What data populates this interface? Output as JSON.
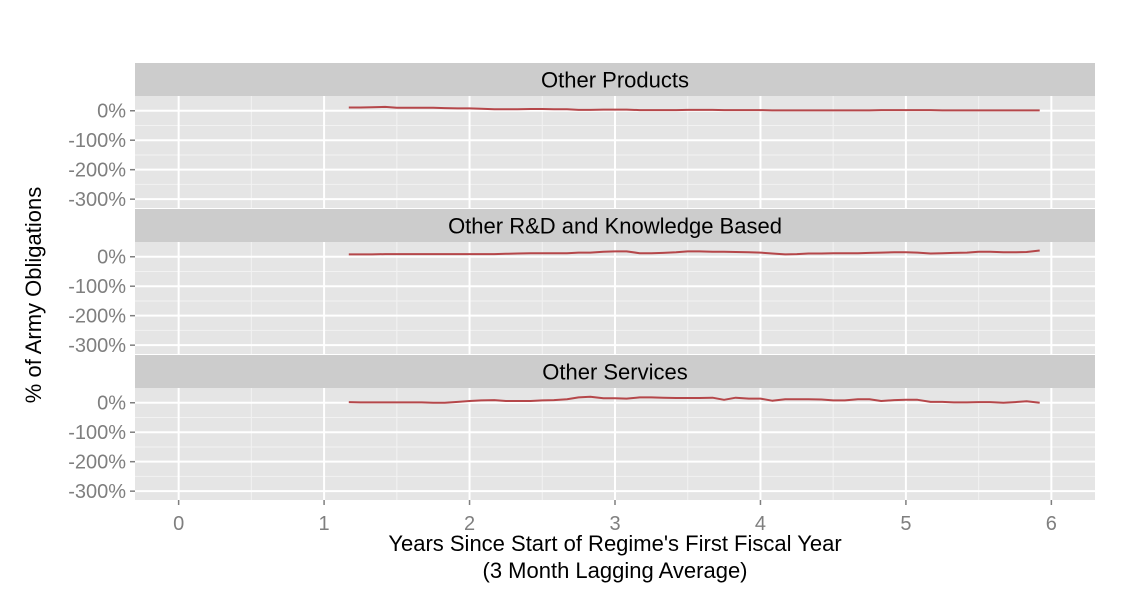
{
  "chart_data": {
    "type": "line",
    "facets": [
      "Other Products",
      "Other R&D and Knowledge Based",
      "Other Services"
    ],
    "xlabel": "Years Since Start of Regime's First Fiscal Year",
    "xlabel_note": "(3 Month Lagging Average)",
    "ylabel": "% of Army Obligations",
    "xlim": [
      -0.3,
      6.3
    ],
    "ylim": [
      -330,
      50
    ],
    "x_ticks": [
      0,
      1,
      2,
      3,
      4,
      5,
      6
    ],
    "x_tick_labels": [
      "0",
      "1",
      "2",
      "3",
      "4",
      "5",
      "6"
    ],
    "y_ticks": [
      0,
      -100,
      -200,
      -300
    ],
    "y_tick_labels": [
      "0%",
      "-100%",
      "-200%",
      "-300%"
    ],
    "grid": true,
    "line_color": "#b5474a",
    "panel_background": "#e5e5e5",
    "strip_background": "#cccccc",
    "series": [
      {
        "facet": "Other Products",
        "x": [
          1.17,
          1.25,
          1.33,
          1.42,
          1.5,
          1.58,
          1.67,
          1.75,
          1.83,
          1.92,
          2.0,
          2.08,
          2.17,
          2.25,
          2.33,
          2.42,
          2.5,
          2.58,
          2.67,
          2.75,
          2.83,
          2.92,
          3.0,
          3.08,
          3.17,
          3.25,
          3.33,
          3.42,
          3.5,
          3.58,
          3.67,
          3.75,
          3.83,
          3.92,
          4.0,
          4.08,
          4.17,
          4.25,
          4.33,
          4.42,
          4.5,
          4.58,
          4.67,
          4.75,
          4.83,
          4.92,
          5.0,
          5.08,
          5.17,
          5.25,
          5.33,
          5.42,
          5.5,
          5.58,
          5.67,
          5.75,
          5.83,
          5.92
        ],
        "values": [
          11,
          11,
          12,
          13,
          10,
          10,
          10,
          10,
          9,
          8,
          8,
          7,
          5,
          5,
          5,
          6,
          6,
          5,
          5,
          3,
          3,
          4,
          4,
          4,
          2,
          2,
          2,
          2,
          3,
          3,
          3,
          2,
          2,
          2,
          2,
          1,
          1,
          1,
          1,
          1,
          1,
          1,
          1,
          1,
          2,
          2,
          2,
          2,
          2,
          1,
          1,
          1,
          1,
          1,
          1,
          1,
          1,
          1
        ]
      },
      {
        "facet": "Other R&D and Knowledge Based",
        "x": [
          1.17,
          1.25,
          1.33,
          1.42,
          1.5,
          1.58,
          1.67,
          1.75,
          1.83,
          1.92,
          2.0,
          2.08,
          2.17,
          2.25,
          2.33,
          2.42,
          2.5,
          2.58,
          2.67,
          2.75,
          2.83,
          2.92,
          3.0,
          3.08,
          3.17,
          3.25,
          3.33,
          3.42,
          3.5,
          3.58,
          3.67,
          3.75,
          3.83,
          3.92,
          4.0,
          4.08,
          4.17,
          4.25,
          4.33,
          4.42,
          4.5,
          4.58,
          4.67,
          4.75,
          4.83,
          4.92,
          5.0,
          5.08,
          5.17,
          5.25,
          5.33,
          5.42,
          5.5,
          5.58,
          5.67,
          5.75,
          5.83,
          5.92
        ],
        "values": [
          8,
          8,
          8,
          9,
          9,
          9,
          9,
          9,
          9,
          9,
          9,
          9,
          9,
          10,
          11,
          12,
          12,
          12,
          12,
          14,
          14,
          17,
          18,
          18,
          12,
          12,
          13,
          15,
          18,
          18,
          17,
          17,
          16,
          15,
          14,
          11,
          8,
          9,
          11,
          11,
          12,
          12,
          12,
          13,
          14,
          15,
          15,
          14,
          11,
          12,
          13,
          14,
          17,
          17,
          15,
          15,
          16,
          21
        ]
      },
      {
        "facet": "Other Services",
        "x": [
          1.17,
          1.25,
          1.33,
          1.42,
          1.5,
          1.58,
          1.67,
          1.75,
          1.83,
          1.92,
          2.0,
          2.08,
          2.17,
          2.25,
          2.33,
          2.42,
          2.5,
          2.58,
          2.67,
          2.75,
          2.83,
          2.92,
          3.0,
          3.08,
          3.17,
          3.25,
          3.33,
          3.42,
          3.5,
          3.58,
          3.67,
          3.75,
          3.83,
          3.92,
          4.0,
          4.08,
          4.17,
          4.25,
          4.33,
          4.42,
          4.5,
          4.58,
          4.67,
          4.75,
          4.83,
          4.92,
          5.0,
          5.08,
          5.17,
          5.25,
          5.33,
          5.42,
          5.5,
          5.58,
          5.67,
          5.75,
          5.83,
          5.92
        ],
        "values": [
          2,
          1,
          1,
          1,
          1,
          1,
          1,
          0,
          0,
          3,
          6,
          8,
          9,
          6,
          6,
          6,
          8,
          9,
          12,
          18,
          20,
          15,
          15,
          14,
          18,
          18,
          17,
          16,
          16,
          16,
          17,
          10,
          17,
          14,
          14,
          7,
          12,
          12,
          12,
          11,
          8,
          8,
          12,
          12,
          6,
          9,
          10,
          10,
          3,
          3,
          1,
          1,
          2,
          2,
          0,
          2,
          5,
          0
        ]
      }
    ]
  }
}
